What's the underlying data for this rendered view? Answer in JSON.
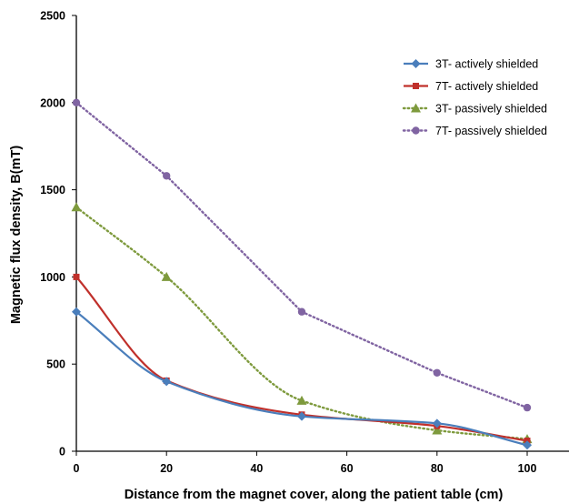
{
  "chart_data": {
    "type": "line",
    "title": "",
    "xlabel": "Distance from the magnet cover, along the patient table (cm)",
    "ylabel": "Magnetic flux density, B(mT)",
    "xlim": [
      0,
      100
    ],
    "ylim": [
      0,
      2500
    ],
    "x_ticks": [
      0,
      20,
      40,
      60,
      80,
      100
    ],
    "y_ticks": [
      0,
      500,
      1000,
      1500,
      2000,
      2500
    ],
    "grid": false,
    "legend_position": "top-right",
    "x": [
      0,
      20,
      50,
      80,
      100
    ],
    "series": [
      {
        "name": "3T- actively shielded",
        "values": [
          800,
          400,
          200,
          160,
          35
        ],
        "color": "#4a7ebb",
        "marker": "diamond",
        "line_style": "solid",
        "smooth": true
      },
      {
        "name": "7T- actively shielded",
        "values": [
          1000,
          405,
          210,
          145,
          60
        ],
        "color": "#c0302b",
        "marker": "square",
        "line_style": "solid",
        "smooth": true
      },
      {
        "name": "3T- passively shielded",
        "values": [
          1400,
          1000,
          290,
          120,
          70
        ],
        "color": "#7e9a3d",
        "marker": "triangle",
        "line_style": "dotted",
        "smooth": true
      },
      {
        "name": "7T- passively shielded",
        "values": [
          2000,
          1580,
          800,
          450,
          250
        ],
        "color": "#8064a2",
        "marker": "circle",
        "line_style": "dotted",
        "smooth": false
      }
    ]
  }
}
